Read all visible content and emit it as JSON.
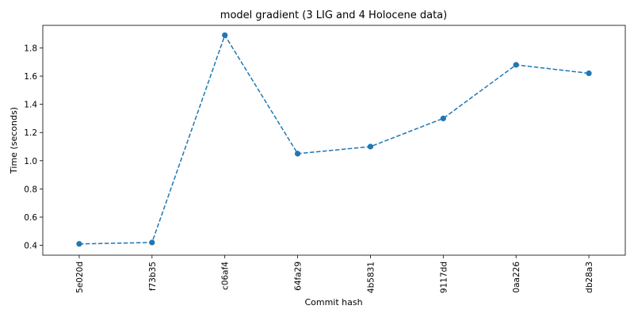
{
  "chart_data": {
    "type": "line",
    "title": "model gradient (3 LIG and 4 Holocene data)",
    "xlabel": "Commit hash",
    "ylabel": "Time (seconds)",
    "categories": [
      "5e020d",
      "f73b35",
      "c06af4",
      "64fa29",
      "4b5831",
      "9117dd",
      "0aa226",
      "db28a3"
    ],
    "series": [
      {
        "values": [
          0.41,
          0.42,
          1.89,
          1.05,
          1.1,
          1.3,
          1.68,
          1.62
        ]
      }
    ],
    "ylim": [
      0.33,
      1.96
    ],
    "yticks": [
      "0.4",
      "0.6",
      "0.8",
      "1.0",
      "1.2",
      "1.4",
      "1.6",
      "1.8"
    ],
    "grid": false,
    "legend": "none",
    "line_style": "dashed",
    "marker": "circle",
    "color": "#1f77b4"
  }
}
